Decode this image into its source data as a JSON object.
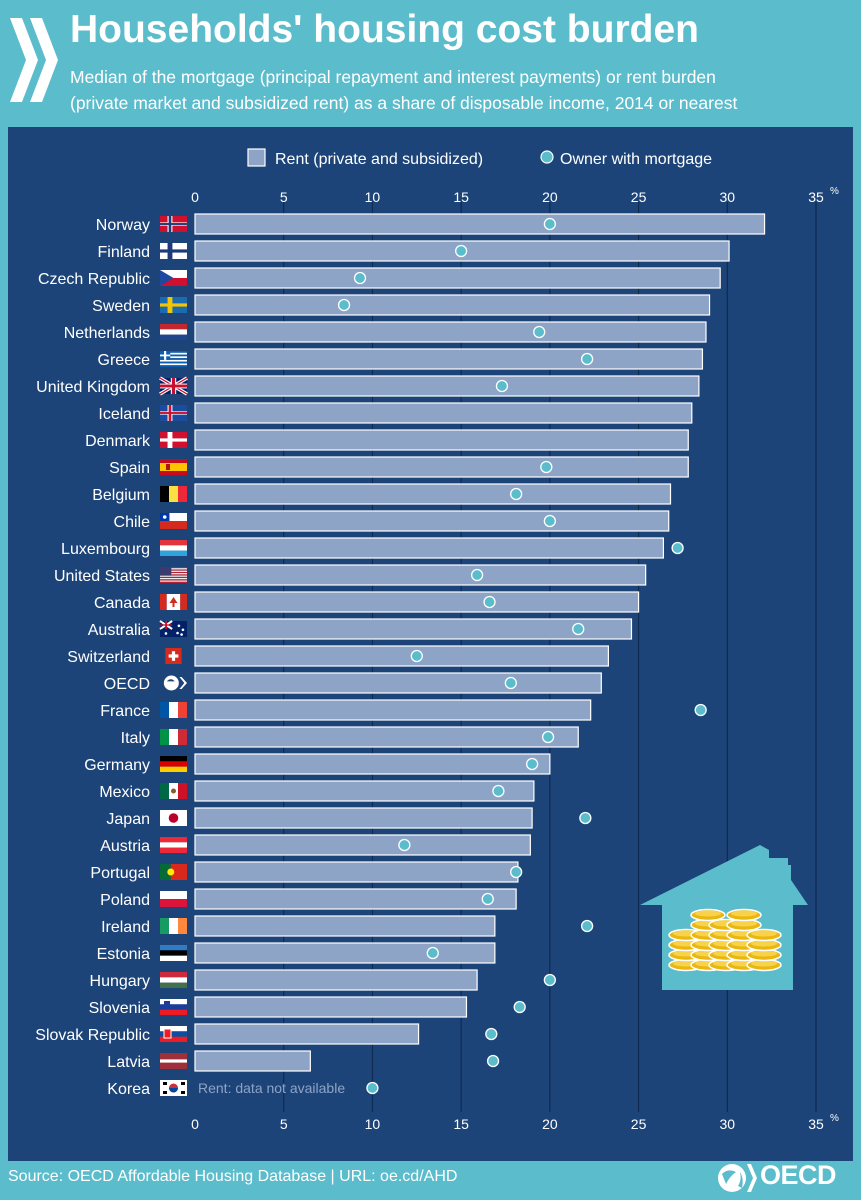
{
  "header": {
    "title": "Households' housing cost burden",
    "subtitle_line1": "Median of the mortgage (principal repayment and interest payments) or rent burden",
    "subtitle_line2": "(private market and subsidized rent) as a share of disposable income, 2014 or nearest"
  },
  "footer": {
    "source": "Source: OECD Affordable Housing Database | URL: oe.cd/AHD",
    "logo_text": "OECD"
  },
  "colors": {
    "background": "#5bbccc",
    "panel": "#1d4478",
    "bar": "#8ea4c6",
    "dot": "#5bbccc"
  },
  "chart_data": {
    "type": "bar",
    "orientation": "horizontal",
    "unit_label": "%",
    "xlim": [
      0,
      35
    ],
    "ticks": [
      0,
      5,
      10,
      15,
      20,
      25,
      30,
      35
    ],
    "grid": true,
    "legend_position": "top",
    "note_label": "Rent: data not available",
    "categories": [
      "Norway",
      "Finland",
      "Czech Republic",
      "Sweden",
      "Netherlands",
      "Greece",
      "United Kingdom",
      "Iceland",
      "Denmark",
      "Spain",
      "Belgium",
      "Chile",
      "Luxembourg",
      "United States",
      "Canada",
      "Australia",
      "Switzerland",
      "OECD",
      "France",
      "Italy",
      "Germany",
      "Mexico",
      "Japan",
      "Austria",
      "Portugal",
      "Poland",
      "Ireland",
      "Estonia",
      "Hungary",
      "Slovenia",
      "Slovak Republic",
      "Latvia",
      "Korea"
    ],
    "flags": [
      "norway-flag-icon",
      "finland-flag-icon",
      "czech-republic-flag-icon",
      "sweden-flag-icon",
      "netherlands-flag-icon",
      "greece-flag-icon",
      "united-kingdom-flag-icon",
      "iceland-flag-icon",
      "denmark-flag-icon",
      "spain-flag-icon",
      "belgium-flag-icon",
      "chile-flag-icon",
      "luxembourg-flag-icon",
      "united-states-flag-icon",
      "canada-flag-icon",
      "australia-flag-icon",
      "switzerland-flag-icon",
      "oecd-logo-icon",
      "france-flag-icon",
      "italy-flag-icon",
      "germany-flag-icon",
      "mexico-flag-icon",
      "japan-flag-icon",
      "austria-flag-icon",
      "portugal-flag-icon",
      "poland-flag-icon",
      "ireland-flag-icon",
      "estonia-flag-icon",
      "hungary-flag-icon",
      "slovenia-flag-icon",
      "slovak-republic-flag-icon",
      "latvia-flag-icon",
      "korea-flag-icon"
    ],
    "series": [
      {
        "name": "Rent (private and subsidized)",
        "type": "bar",
        "values": [
          32.1,
          30.1,
          29.6,
          29.0,
          28.8,
          28.6,
          28.4,
          28.0,
          27.8,
          27.8,
          26.8,
          26.7,
          26.4,
          25.4,
          25.0,
          24.6,
          23.3,
          22.9,
          22.3,
          21.6,
          20.0,
          19.1,
          19.0,
          18.9,
          18.2,
          18.1,
          16.9,
          16.9,
          15.9,
          15.3,
          12.6,
          6.5,
          null
        ]
      },
      {
        "name": "Owner with mortgage",
        "type": "dot",
        "values": [
          20.0,
          15.0,
          9.3,
          8.4,
          19.4,
          22.1,
          17.3,
          null,
          null,
          19.8,
          18.1,
          20.0,
          27.2,
          15.9,
          16.6,
          21.6,
          12.5,
          17.8,
          28.5,
          19.9,
          19.0,
          17.1,
          22.0,
          11.8,
          18.1,
          16.5,
          22.1,
          13.4,
          20.0,
          18.3,
          16.7,
          16.8,
          10.0
        ]
      }
    ]
  }
}
